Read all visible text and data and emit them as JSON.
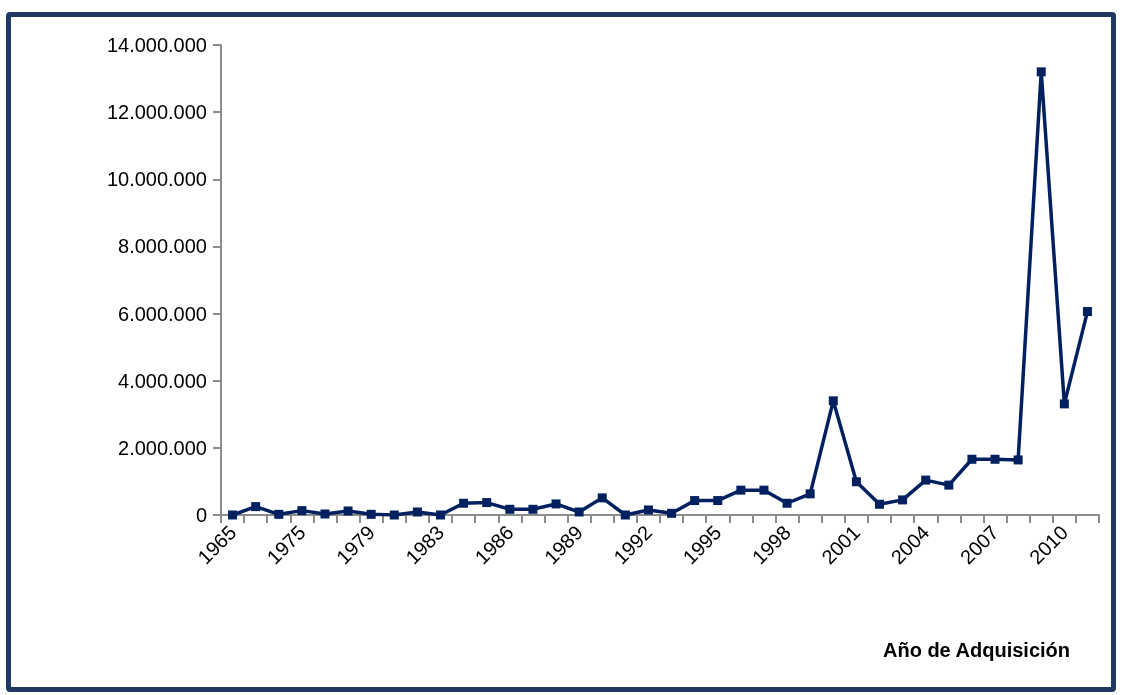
{
  "chart_data": {
    "type": "line",
    "xlabel": "Año de Adquisición",
    "categories": [
      "1965",
      null,
      null,
      "1975",
      null,
      null,
      "1979",
      null,
      null,
      "1983",
      null,
      null,
      "1986",
      null,
      null,
      "1989",
      null,
      null,
      "1992",
      null,
      null,
      "1995",
      null,
      null,
      "1998",
      null,
      null,
      "2001",
      null,
      null,
      "2004",
      null,
      null,
      "2007",
      null,
      null,
      "2010",
      null
    ],
    "series": [
      {
        "color": "#002060",
        "values": [
          0,
          250000,
          20000,
          130000,
          30000,
          120000,
          20000,
          0,
          90000,
          0,
          350000,
          370000,
          170000,
          170000,
          330000,
          90000,
          510000,
          0,
          150000,
          50000,
          430000,
          430000,
          740000,
          740000,
          350000,
          630000,
          3400000,
          990000,
          320000,
          450000,
          1040000,
          890000,
          1660000,
          1660000,
          1640000,
          13200000,
          3310000,
          6060000
        ]
      }
    ],
    "ylim": [
      0,
      14000000
    ],
    "yticks": [
      {
        "value": 0,
        "label": "0"
      },
      {
        "value": 2000000,
        "label": "2.000.000"
      },
      {
        "value": 4000000,
        "label": "4.000.000"
      },
      {
        "value": 6000000,
        "label": "6.000.000"
      },
      {
        "value": 8000000,
        "label": "8.000.000"
      },
      {
        "value": 10000000,
        "label": "10.000.000"
      },
      {
        "value": 12000000,
        "label": "12.000.000"
      },
      {
        "value": 14000000,
        "label": "14.000.000"
      }
    ],
    "grid": false,
    "marker": "square",
    "line_style": "solid"
  }
}
